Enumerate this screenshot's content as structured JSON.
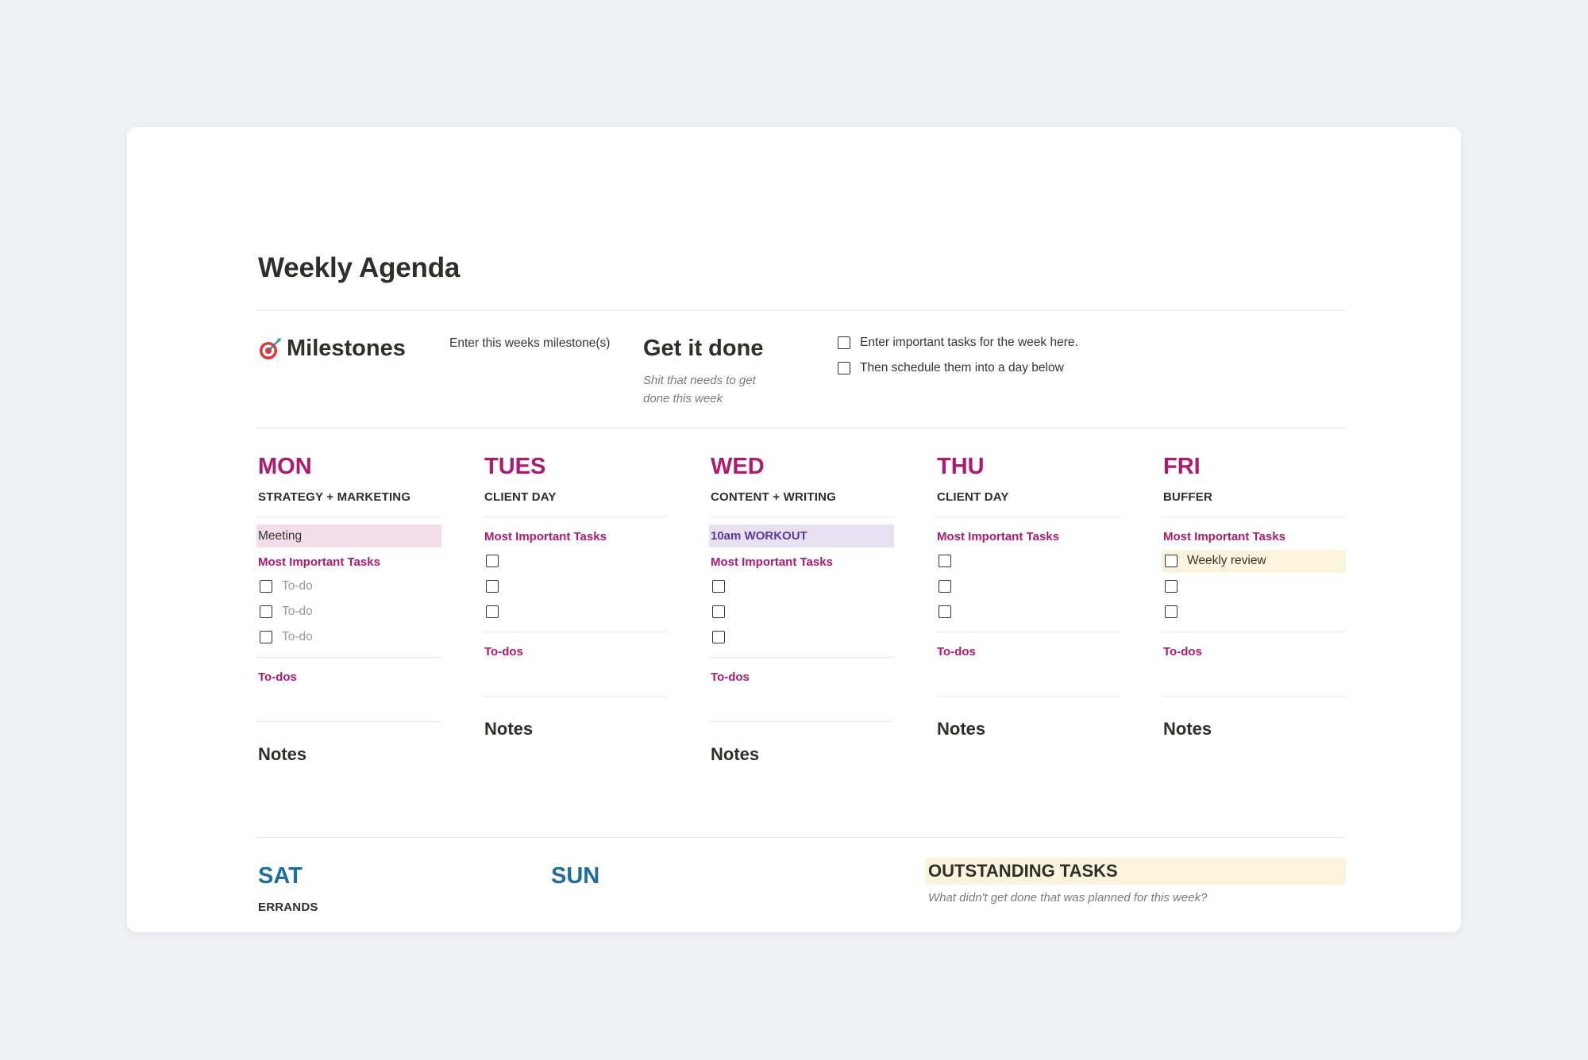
{
  "page": {
    "title": "Weekly Agenda"
  },
  "milestones": {
    "icon": "target-icon",
    "heading": "Milestones",
    "placeholder": "Enter this weeks milestone(s)"
  },
  "get_it_done": {
    "heading": "Get it done",
    "description_line1": "Shit that needs to get",
    "description_line2": "done this week",
    "tasks": [
      "Enter important tasks for the week here.",
      "Then schedule them into a day below"
    ]
  },
  "labels": {
    "most_important_tasks": "Most Important Tasks",
    "todos": "To-dos",
    "notes": "Notes",
    "todo_placeholder": "To-do"
  },
  "days": {
    "mon": {
      "name": "MON",
      "focus": "STRATEGY + MARKETING",
      "highlight": "Meeting"
    },
    "tues": {
      "name": "TUES",
      "focus": "CLIENT DAY"
    },
    "wed": {
      "name": "WED",
      "focus": "CONTENT + WRITING",
      "highlight": "10am WORKOUT"
    },
    "thu": {
      "name": "THU",
      "focus": "CLIENT DAY"
    },
    "fri": {
      "name": "FRI",
      "focus": "BUFFER",
      "first_task": "Weekly review"
    }
  },
  "weekend": {
    "sat": {
      "name": "SAT",
      "focus": "ERRANDS"
    },
    "sun": {
      "name": "SUN"
    }
  },
  "outstanding": {
    "heading": "OUTSTANDING TASKS",
    "description": "What didn't get done that was planned for this week?"
  },
  "colors": {
    "weekday": "#ad1a72",
    "weekend": "#1f6c9f",
    "meeting_bg": "#f3dde9",
    "workout_bg": "#e6e0f0",
    "workout_text": "#5a3b9a",
    "yellow_bg": "#fbf3db"
  }
}
